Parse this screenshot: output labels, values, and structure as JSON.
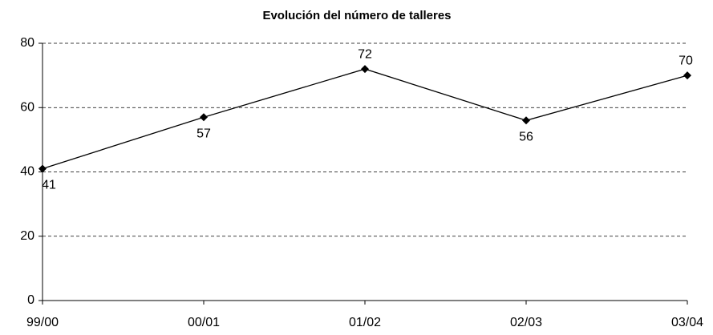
{
  "chart_data": {
    "type": "line",
    "title": "Evolución del número de talleres",
    "categories": [
      "99/00",
      "00/01",
      "01/02",
      "02/03",
      "03/04"
    ],
    "values": [
      41,
      57,
      72,
      56,
      70
    ],
    "color": "#000000",
    "ylim": [
      0,
      80
    ],
    "yticks": [
      0,
      20,
      40,
      60,
      80
    ],
    "grid": true
  }
}
